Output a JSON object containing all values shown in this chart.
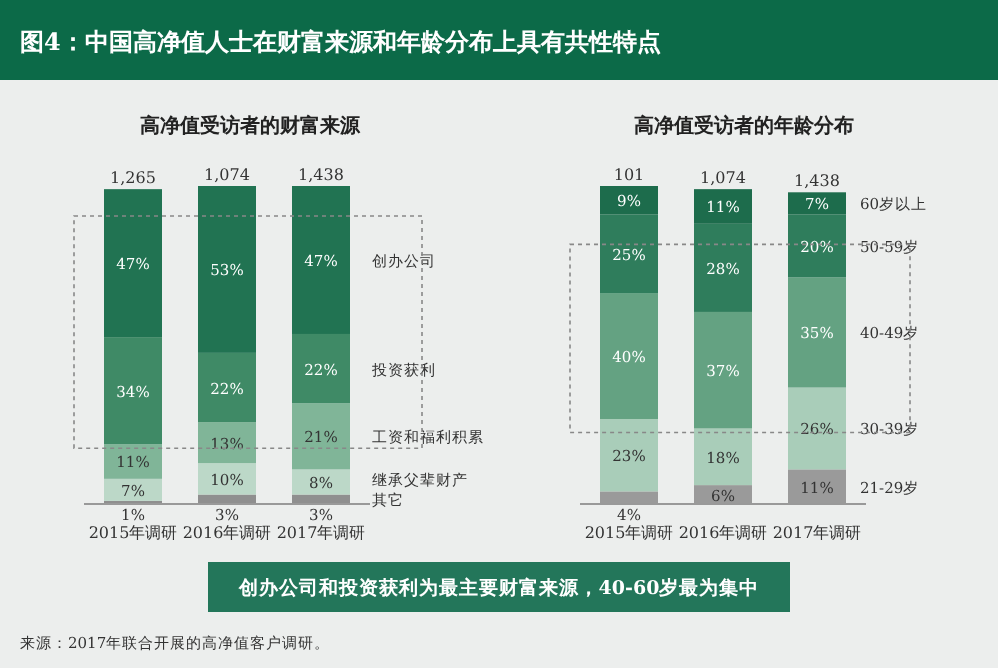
{
  "chart_data": [
    {
      "type": "bar",
      "stacked": true,
      "title": "图4：中国高净值人士在财富来源和年龄分布上具有共性特点",
      "subtitle": "高净值受访者的财富来源",
      "categories": [
        "2015年调研",
        "2016年调研",
        "2017年调研"
      ],
      "series": [
        {
          "name": "其它",
          "color": "#8f8f8f",
          "values": [
            1,
            3,
            3
          ],
          "value_labels": [
            "1%",
            "3%",
            "3%"
          ]
        },
        {
          "name": "继承父辈财产",
          "color": "#bcd8c8",
          "values": [
            7,
            10,
            8
          ],
          "value_labels": [
            "7%",
            "10%",
            "8%"
          ]
        },
        {
          "name": "工资和福利积累",
          "color": "#80b598",
          "values": [
            11,
            13,
            21
          ],
          "value_labels": [
            "11%",
            "13%",
            "21%"
          ]
        },
        {
          "name": "投资获利",
          "color": "#3f8a66",
          "values": [
            34,
            22,
            22
          ],
          "value_labels": [
            "34%",
            "22%",
            "22%"
          ]
        },
        {
          "name": "创办公司",
          "color": "#217352",
          "values": [
            47,
            53,
            47
          ],
          "value_labels": [
            "47%",
            "53%",
            "47%"
          ]
        }
      ],
      "annotations": [
        "创办公司和投资获利为最主要财富来源，40-60岁最为集中",
        "来源：2017年联合开展的高净值客户调研。",
        {
          "text": "1,265",
          "x": "2015年调研",
          "y": 100
        },
        {
          "text": "1,074",
          "x": "2016年调研",
          "y": 101
        },
        {
          "text": "1,438",
          "x": "2017年调研",
          "y": 101
        }
      ]
    },
    {
      "type": "bar",
      "stacked": true,
      "title": "高净值受访者的年龄分布",
      "categories": [
        "2015年调研",
        "2016年调研",
        "2017年调研"
      ],
      "annotations": [
        {
          "text": "101",
          "x": "2015年调研",
          "y": 101
        },
        {
          "text": "1,074",
          "x": "2016年调研",
          "y": 100
        },
        {
          "text": "1,438",
          "x": "2017年调研",
          "y": 99
        }
      ],
      "series": [
        {
          "name": "21-29岁",
          "color": "#9a9a9a",
          "values": [
            4,
            6,
            11
          ],
          "value_labels": [
            "4%",
            "6%",
            "11%"
          ]
        },
        {
          "name": "30-39岁",
          "color": "#a9cdb9",
          "values": [
            23,
            18,
            26
          ],
          "value_labels": [
            "23%",
            "18%",
            "26%"
          ]
        },
        {
          "name": "40-49岁",
          "color": "#64a282",
          "values": [
            40,
            37,
            35
          ],
          "value_labels": [
            "40%",
            "37%",
            "35%"
          ]
        },
        {
          "name": "50-59岁",
          "color": "#2f7d5c",
          "values": [
            25,
            28,
            20
          ],
          "value_labels": [
            "25%",
            "28%",
            "20%"
          ]
        },
        {
          "name": "60岁以上",
          "color": "#1d6c4c",
          "values": [
            9,
            11,
            7
          ],
          "value_labels": [
            "9%",
            "11%",
            "7%"
          ]
        }
      ]
    }
  ]
}
